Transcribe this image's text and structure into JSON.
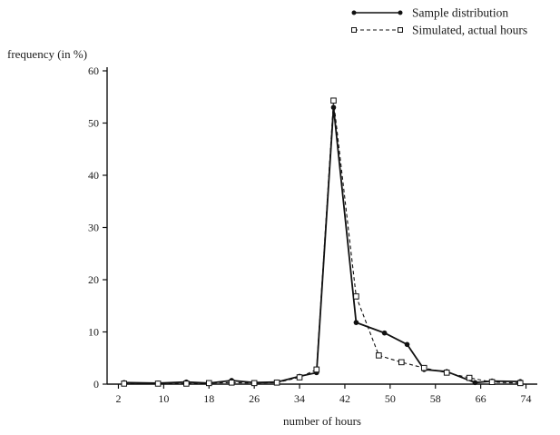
{
  "chart_data": {
    "type": "line",
    "title": "",
    "xlabel": "number of hours",
    "ylabel": "frequency (in %)",
    "xlim": [
      0,
      76
    ],
    "ylim": [
      0,
      60
    ],
    "x_ticks": [
      2,
      10,
      18,
      26,
      34,
      42,
      50,
      58,
      66,
      74
    ],
    "y_ticks": [
      0,
      10,
      20,
      30,
      40,
      50,
      60
    ],
    "grid": false,
    "legend_position": "top-right",
    "series": [
      {
        "name": "Sample distribution",
        "style": "solid",
        "marker": "filled-circle",
        "color": "#111111",
        "x": [
          3,
          9,
          14,
          18,
          22,
          26,
          30,
          34,
          37,
          40,
          44,
          49,
          53,
          56,
          60,
          65,
          68,
          73
        ],
        "y": [
          0.3,
          0.2,
          0.4,
          0.2,
          0.7,
          0.3,
          0.4,
          1.5,
          2.2,
          53.0,
          11.8,
          9.8,
          7.6,
          2.8,
          2.4,
          0.3,
          0.6,
          0.5
        ]
      },
      {
        "name": "Simulated, actual hours",
        "style": "dashed",
        "marker": "open-square",
        "color": "#111111",
        "x": [
          3,
          9,
          14,
          18,
          22,
          26,
          30,
          34,
          37,
          40,
          44,
          48,
          52,
          56,
          60,
          64,
          68,
          73
        ],
        "y": [
          0.1,
          0.1,
          0.1,
          0.2,
          0.3,
          0.2,
          0.3,
          1.3,
          2.8,
          54.3,
          16.8,
          5.5,
          4.2,
          3.1,
          2.2,
          1.2,
          0.4,
          0.2
        ]
      }
    ]
  }
}
